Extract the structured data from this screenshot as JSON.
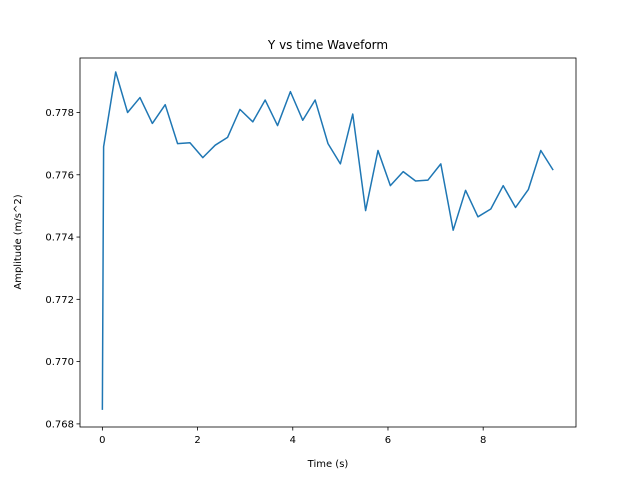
{
  "chart_data": {
    "type": "line",
    "title": "Y vs time Waveform",
    "xlabel": "Time (s)",
    "ylabel": "Amplitude (m/s^2)",
    "xlim": [
      -0.47,
      9.95
    ],
    "ylim": [
      0.7679,
      0.77975
    ],
    "xticks": [
      0,
      2,
      4,
      6,
      8
    ],
    "xtick_labels": [
      "0",
      "2",
      "4",
      "6",
      "8"
    ],
    "yticks": [
      0.768,
      0.77,
      0.772,
      0.774,
      0.776,
      0.778
    ],
    "ytick_labels": [
      "0.768",
      "0.770",
      "0.772",
      "0.774",
      "0.776",
      "0.778"
    ],
    "grid": false,
    "color": "#1f77b4",
    "series": [
      {
        "x": [
          0.0,
          0.026,
          0.28,
          0.53,
          0.79,
          1.05,
          1.32,
          1.58,
          1.84,
          2.11,
          2.37,
          2.63,
          2.89,
          3.16,
          3.42,
          3.68,
          3.95,
          4.21,
          4.47,
          4.74,
          5.0,
          5.26,
          5.53,
          5.79,
          6.05,
          6.32,
          6.58,
          6.84,
          7.11,
          7.37,
          7.63,
          7.89,
          8.16,
          8.42,
          8.68,
          8.95,
          9.21,
          9.47
        ],
        "y": [
          0.76845,
          0.7769,
          0.7793,
          0.778,
          0.77848,
          0.77765,
          0.77825,
          0.777,
          0.77703,
          0.77655,
          0.77695,
          0.7772,
          0.7781,
          0.7777,
          0.7784,
          0.77758,
          0.77867,
          0.77775,
          0.7784,
          0.777,
          0.77635,
          0.77795,
          0.77485,
          0.77678,
          0.77565,
          0.7761,
          0.7758,
          0.77583,
          0.77635,
          0.77422,
          0.7755,
          0.77465,
          0.7749,
          0.77565,
          0.77495,
          0.77553,
          0.77678,
          0.77615
        ]
      }
    ]
  }
}
